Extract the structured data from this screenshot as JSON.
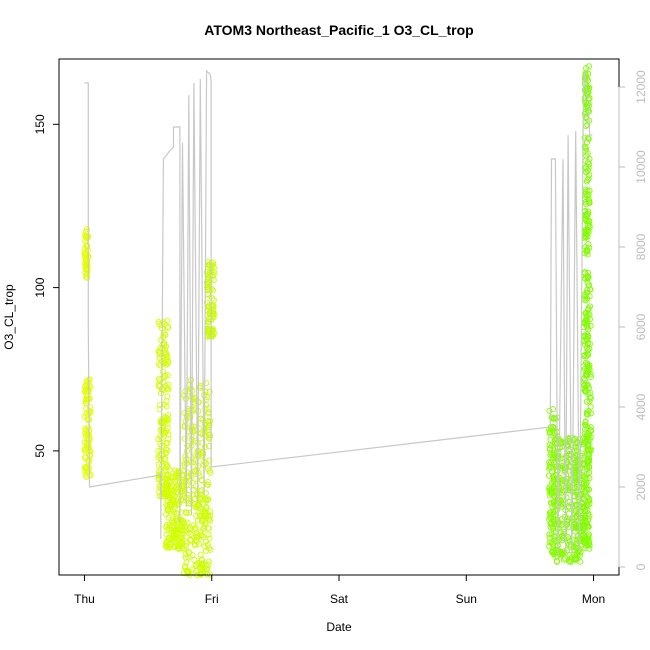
{
  "chart_data": {
    "type": "scatter",
    "title": "ATOM3 Northeast_Pacific_1 O3_CL_trop",
    "xlabel": "Date",
    "ylabel": "O3_CL_trop",
    "x_ticks": [
      "Thu",
      "Fri",
      "Sat",
      "Sun",
      "Mon"
    ],
    "x_tick_values": [
      0,
      1,
      2,
      3,
      4
    ],
    "xlim": [
      -0.2,
      4.2
    ],
    "ylim": [
      12,
      170
    ],
    "y_ticks": [
      50,
      100,
      150
    ],
    "y2lim": [
      -200,
      12700
    ],
    "y2_ticks": [
      0,
      2000,
      4000,
      6000,
      8000,
      10000,
      12000
    ],
    "grid": false,
    "series": [
      {
        "role": "points",
        "color_light": "#e8ff00",
        "color_dark": "#7cfc00",
        "clusters": [
          {
            "x": [
              0.0,
              0.03
            ],
            "y": [
              103,
              118
            ]
          },
          {
            "x": [
              0.0,
              0.05
            ],
            "y": [
              42,
              72
            ]
          },
          {
            "x": [
              0.58,
              0.66
            ],
            "y": [
              36,
              90
            ]
          },
          {
            "x": [
              0.64,
              0.78
            ],
            "y": [
              20,
              45
            ]
          },
          {
            "x": [
              0.78,
              0.99
            ],
            "y": [
              12,
              72
            ]
          },
          {
            "x": [
              0.96,
              1.02
            ],
            "y": [
              85,
              108
            ]
          },
          {
            "x": [
              3.65,
              3.72
            ],
            "y": [
              18,
              63
            ]
          },
          {
            "x": [
              3.7,
              3.9
            ],
            "y": [
              16,
              54
            ]
          },
          {
            "x": [
              3.86,
              3.97
            ],
            "y": [
              20,
              50
            ]
          },
          {
            "x": [
              3.92,
              3.98
            ],
            "y": [
              50,
              105
            ]
          },
          {
            "x": [
              3.93,
              3.97
            ],
            "y": [
              110,
              168
            ]
          }
        ]
      },
      {
        "role": "line",
        "axis": "right",
        "color": "#c8c8c8",
        "points": [
          [
            0.0,
            12100
          ],
          [
            0.03,
            12100
          ],
          [
            0.03,
            6000
          ],
          [
            0.04,
            2000
          ],
          [
            0.6,
            2300
          ],
          [
            0.6,
            700
          ],
          [
            0.62,
            10200
          ],
          [
            0.67,
            10400
          ],
          [
            0.7,
            10500
          ],
          [
            0.7,
            11000
          ],
          [
            0.75,
            11000
          ],
          [
            0.75,
            1100
          ],
          [
            0.77,
            10600
          ],
          [
            0.8,
            1500
          ],
          [
            0.82,
            11800
          ],
          [
            0.84,
            1300
          ],
          [
            0.86,
            12100
          ],
          [
            0.89,
            1600
          ],
          [
            0.91,
            12200
          ],
          [
            0.94,
            1800
          ],
          [
            0.96,
            12400
          ],
          [
            0.99,
            12300
          ],
          [
            0.995,
            12100
          ],
          [
            0.995,
            2500
          ],
          [
            3.66,
            3500
          ],
          [
            3.67,
            10200
          ],
          [
            3.7,
            10200
          ],
          [
            3.72,
            200
          ],
          [
            3.76,
            10200
          ],
          [
            3.78,
            300
          ],
          [
            3.8,
            10800
          ],
          [
            3.83,
            300
          ],
          [
            3.86,
            10900
          ],
          [
            3.89,
            400
          ],
          [
            3.92,
            11800
          ],
          [
            3.93,
            12400
          ],
          [
            3.96,
            11500
          ],
          [
            3.97,
            10800
          ],
          [
            3.99,
            10800
          ]
        ]
      }
    ]
  }
}
